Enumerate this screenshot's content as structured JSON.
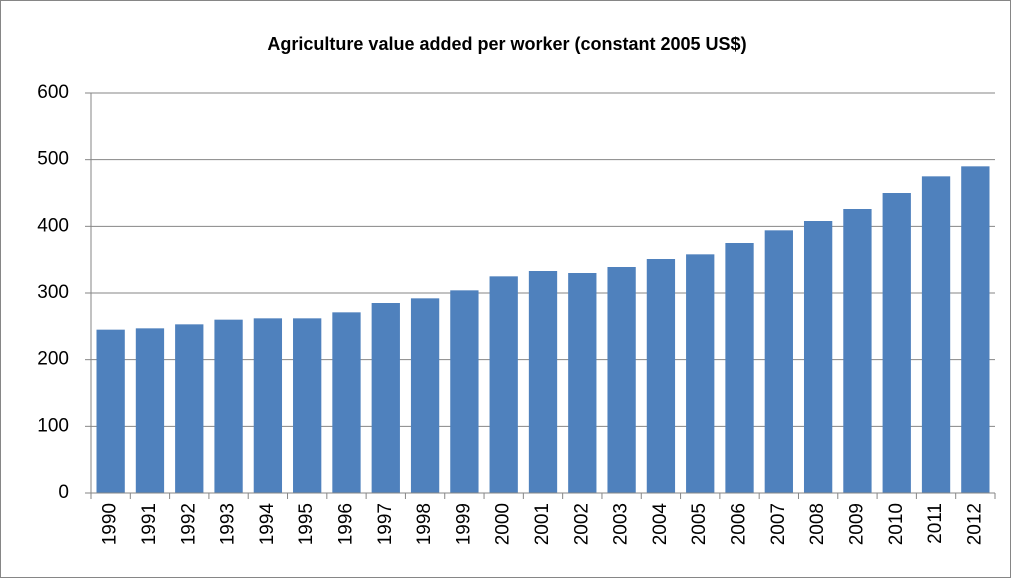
{
  "chart_data": {
    "type": "bar",
    "title": "Agriculture value added per worker (constant 2005 US$)",
    "categories": [
      "1990",
      "1991",
      "1992",
      "1993",
      "1994",
      "1995",
      "1996",
      "1997",
      "1998",
      "1999",
      "2000",
      "2001",
      "2002",
      "2003",
      "2004",
      "2005",
      "2006",
      "2007",
      "2008",
      "2009",
      "2010",
      "2011",
      "2012"
    ],
    "values": [
      245,
      247,
      253,
      260,
      262,
      262,
      271,
      285,
      292,
      304,
      325,
      333,
      330,
      339,
      351,
      358,
      375,
      394,
      408,
      426,
      450,
      475,
      490
    ],
    "color": "#4f81bd",
    "ylim": [
      0,
      600
    ],
    "yticks": [
      0,
      100,
      200,
      300,
      400,
      500,
      600
    ],
    "grid": true
  }
}
